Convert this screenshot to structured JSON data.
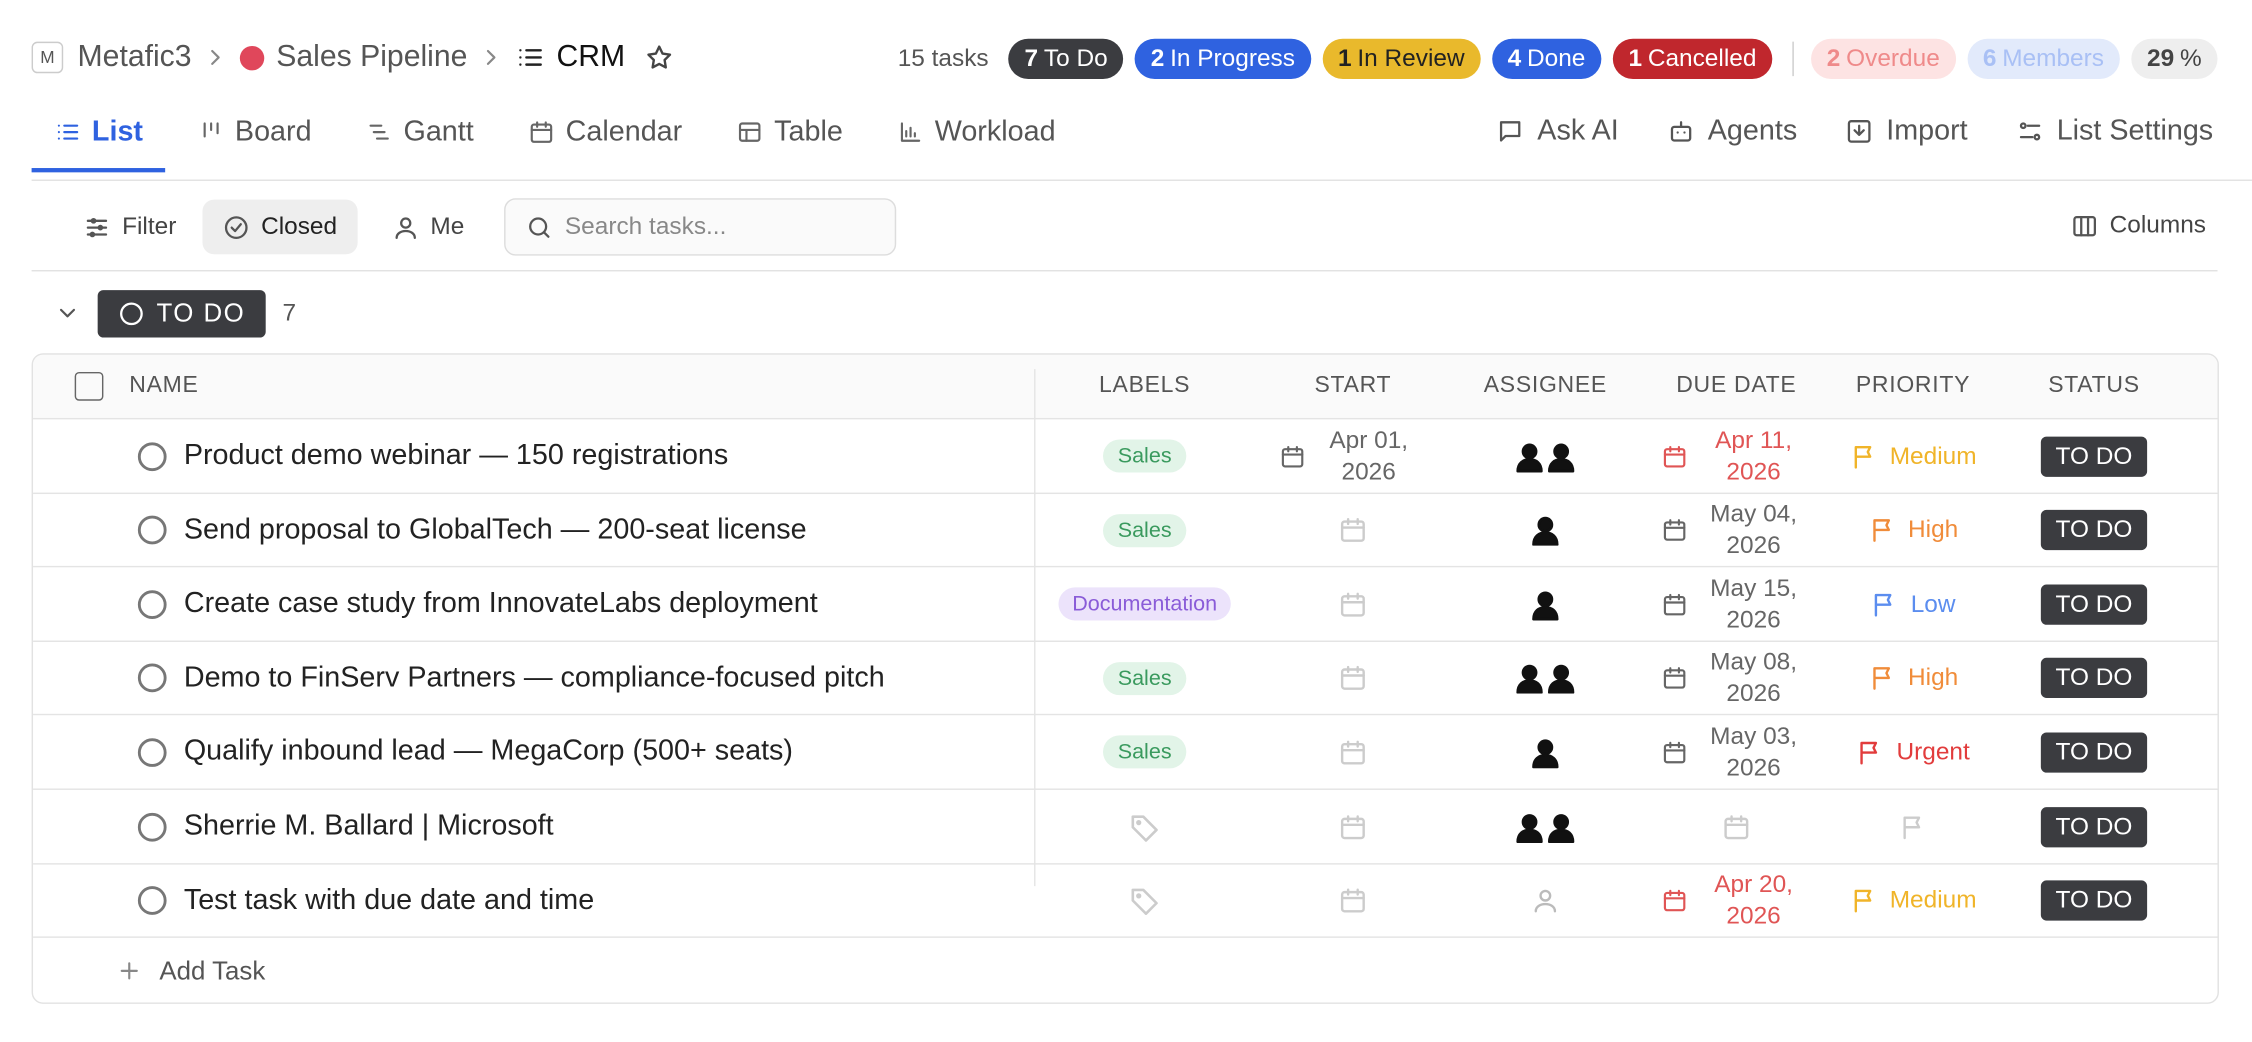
{
  "breadcrumb": {
    "workspace_initial": "M",
    "workspace": "Metafic3",
    "folder": "Sales Pipeline",
    "list": "CRM"
  },
  "summary": {
    "task_count": "15 tasks",
    "statuses": [
      {
        "count": "7",
        "label": "To Do"
      },
      {
        "count": "2",
        "label": "In Progress"
      },
      {
        "count": "1",
        "label": "In Review"
      },
      {
        "count": "4",
        "label": "Done"
      },
      {
        "count": "1",
        "label": "Cancelled"
      }
    ],
    "overdue": {
      "count": "2",
      "label": "Overdue"
    },
    "members": {
      "count": "6",
      "label": "Members"
    },
    "progress": {
      "value": "29",
      "unit": "%"
    }
  },
  "tabs": [
    "List",
    "Board",
    "Gantt",
    "Calendar",
    "Table",
    "Workload"
  ],
  "actions": [
    "Ask AI",
    "Agents",
    "Import",
    "List Settings"
  ],
  "toolbar": {
    "filter": "Filter",
    "closed": "Closed",
    "me": "Me",
    "search_placeholder": "Search tasks...",
    "columns": "Columns"
  },
  "group": {
    "status": "TO DO",
    "count": "7"
  },
  "table": {
    "columns": [
      "NAME",
      "LABELS",
      "START",
      "ASSIGNEE",
      "DUE DATE",
      "PRIORITY",
      "STATUS"
    ],
    "rows": [
      {
        "name": "Product demo webinar — 150 registrations",
        "label": "Sales",
        "start": "Apr 01, 2026",
        "due": "Apr 11, 2026",
        "priority": "Medium",
        "status": "TO DO"
      },
      {
        "name": "Send proposal to GlobalTech — 200-seat license",
        "label": "Sales",
        "start": null,
        "due": "May 04, 2026",
        "priority": "High",
        "status": "TO DO"
      },
      {
        "name": "Create case study from InnovateLabs deployment",
        "label": "Documentation",
        "start": null,
        "due": "May 15, 2026",
        "priority": "Low",
        "status": "TO DO"
      },
      {
        "name": "Demo to FinServ Partners — compliance-focused pitch",
        "label": "Sales",
        "start": null,
        "due": "May 08, 2026",
        "priority": "High",
        "status": "TO DO"
      },
      {
        "name": "Qualify inbound lead — MegaCorp (500+ seats)",
        "label": "Sales",
        "start": null,
        "due": "May 03, 2026",
        "priority": "Urgent",
        "status": "TO DO"
      },
      {
        "name": "Sherrie M. Ballard | Microsoft",
        "label": null,
        "start": null,
        "due": null,
        "priority": null,
        "status": "TO DO"
      },
      {
        "name": "Test task with due date and time",
        "label": null,
        "start": null,
        "due": "Apr 20, 2026",
        "priority": "Medium",
        "status": "TO DO"
      }
    ],
    "add_task": "Add Task"
  }
}
